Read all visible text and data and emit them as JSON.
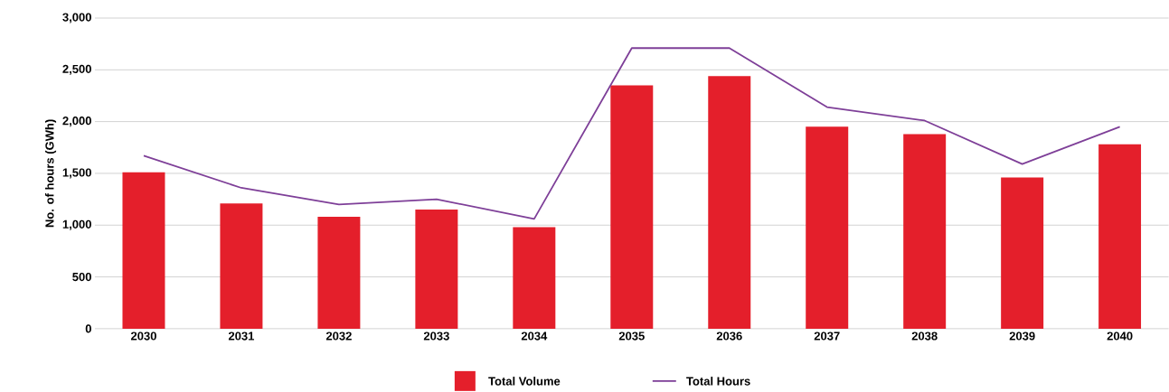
{
  "chart_data": {
    "type": "bar",
    "ylabel": "No. of hours (GWh)",
    "categories": [
      "2030",
      "2031",
      "2032",
      "2033",
      "2034",
      "2035",
      "2036",
      "2037",
      "2038",
      "2039",
      "2040"
    ],
    "series": [
      {
        "name": "Total Volume",
        "color": "#e41f2b",
        "values": [
          1510,
          1210,
          1080,
          1150,
          980,
          2350,
          2440,
          1950,
          1880,
          1460,
          1780
        ]
      },
      {
        "name": "Total Hours",
        "type": "line",
        "color": "#7e3f98",
        "values": [
          1670,
          1360,
          1200,
          1250,
          1060,
          2710,
          2710,
          2140,
          2010,
          1590,
          1950
        ]
      }
    ],
    "ylim": [
      0,
      3000
    ],
    "yticks": [
      0,
      500,
      {
        "value": 1000,
        "label": "1,000"
      },
      {
        "value": 1500,
        "label": "1,500"
      },
      {
        "value": 2000,
        "label": "2,000"
      },
      {
        "value": 2500,
        "label": "2,500"
      },
      {
        "value": 3000,
        "label": "3,000"
      }
    ],
    "grid": "y",
    "legend": "bottom"
  }
}
